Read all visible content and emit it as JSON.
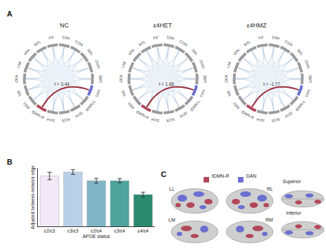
{
  "panel_labels": [
    "A",
    "B",
    "C"
  ],
  "chart_data": [
    {
      "type": "chord",
      "title": "NC",
      "categories": [
        "FP",
        "SSN",
        "CON",
        "SAL",
        "DMN",
        "SMT",
        "DAN",
        "tDMN-L",
        "AUD",
        "ECN",
        "eVIS",
        "tDMN-R",
        "CER",
        "VIS",
        "OFA",
        "LIM",
        "VAN",
        "MTL"
      ],
      "colors": [
        "#9a9a9a",
        "#9a9a9a",
        "#9a9a9a",
        "#9a9a9a",
        "#9a9a9a",
        "#9a9a9a",
        "#6a6fd0",
        "#9a9a9a",
        "#9a9a9a",
        "#9a9a9a",
        "#9a9a9a",
        "#b0485a",
        "#9a9a9a",
        "#9a9a9a",
        "#9a9a9a",
        "#9a9a9a",
        "#9a9a9a",
        "#9a9a9a"
      ],
      "links": [
        {
          "source": "tDMN-R",
          "target": "DAN",
          "label": "t = 3.44",
          "color": "#9b2d3a"
        }
      ]
    },
    {
      "type": "chord",
      "title": "ε4HET",
      "categories": [
        "FP",
        "SSN",
        "CON",
        "SAL",
        "DMN",
        "SMT",
        "DAN",
        "tDMN-L",
        "AUD",
        "ECN",
        "eVIS",
        "tDMN-R",
        "CER",
        "VIS",
        "OFA",
        "LIM",
        "VAN",
        "MTL"
      ],
      "colors": [
        "#9a9a9a",
        "#9a9a9a",
        "#9a9a9a",
        "#9a9a9a",
        "#9a9a9a",
        "#9a9a9a",
        "#6a6fd0",
        "#9a9a9a",
        "#9a9a9a",
        "#9a9a9a",
        "#9a9a9a",
        "#b0485a",
        "#9a9a9a",
        "#9a9a9a",
        "#9a9a9a",
        "#9a9a9a",
        "#9a9a9a",
        "#9a9a9a"
      ],
      "links": [
        {
          "source": "tDMN-R",
          "target": "DAN",
          "label": "t = 1.68",
          "color": "#9b2d3a"
        }
      ]
    },
    {
      "type": "chord",
      "title": "ε4HMZ",
      "categories": [
        "FP",
        "SSN",
        "CON",
        "SAL",
        "DMN",
        "SMT",
        "DAN",
        "tDMN-L",
        "AUD",
        "ECN",
        "eVIS",
        "tDMN-R",
        "CER",
        "VIS",
        "OFA",
        "LIM",
        "VAN",
        "MTL"
      ],
      "colors": [
        "#9a9a9a",
        "#9a9a9a",
        "#9a9a9a",
        "#9a9a9a",
        "#9a9a9a",
        "#9a9a9a",
        "#6a6fd0",
        "#9a9a9a",
        "#9a9a9a",
        "#9a9a9a",
        "#9a9a9a",
        "#b0485a",
        "#9a9a9a",
        "#9a9a9a",
        "#9a9a9a",
        "#9a9a9a",
        "#9a9a9a",
        "#9a9a9a"
      ],
      "links": [
        {
          "source": "tDMN-R",
          "target": "DAN",
          "label": "t = -1.77",
          "color": "#9b2d3a"
        }
      ]
    },
    {
      "type": "bar",
      "categories": [
        "ε2/ε3",
        "ε3/ε3",
        "ε2/ε4",
        "ε3/ε4",
        "ε4/ε4"
      ],
      "values": [
        0.49,
        0.505,
        0.472,
        0.472,
        0.42
      ],
      "errors": [
        0.014,
        0.009,
        0.009,
        0.008,
        0.009
      ],
      "colors": [
        "#f1e9f5",
        "#b9d0e8",
        "#7fb5c6",
        "#4ea39b",
        "#2a8a6e"
      ],
      "xlabel": "APOE status",
      "ylabel": "Adjusted between-network edge",
      "ylim": [
        0.3,
        0.52
      ],
      "yticks": [],
      "tick_labels": "x",
      "grid": false
    }
  ],
  "brain_maps": {
    "legend": [
      {
        "name": "tDMN-R",
        "color": "#b0485a"
      },
      {
        "name": "DAN",
        "color": "#6a6fd0"
      }
    ],
    "views": [
      "LL",
      "RL",
      "LM",
      "RM"
    ],
    "extra_views": [
      "Superior",
      "Inferior"
    ]
  }
}
